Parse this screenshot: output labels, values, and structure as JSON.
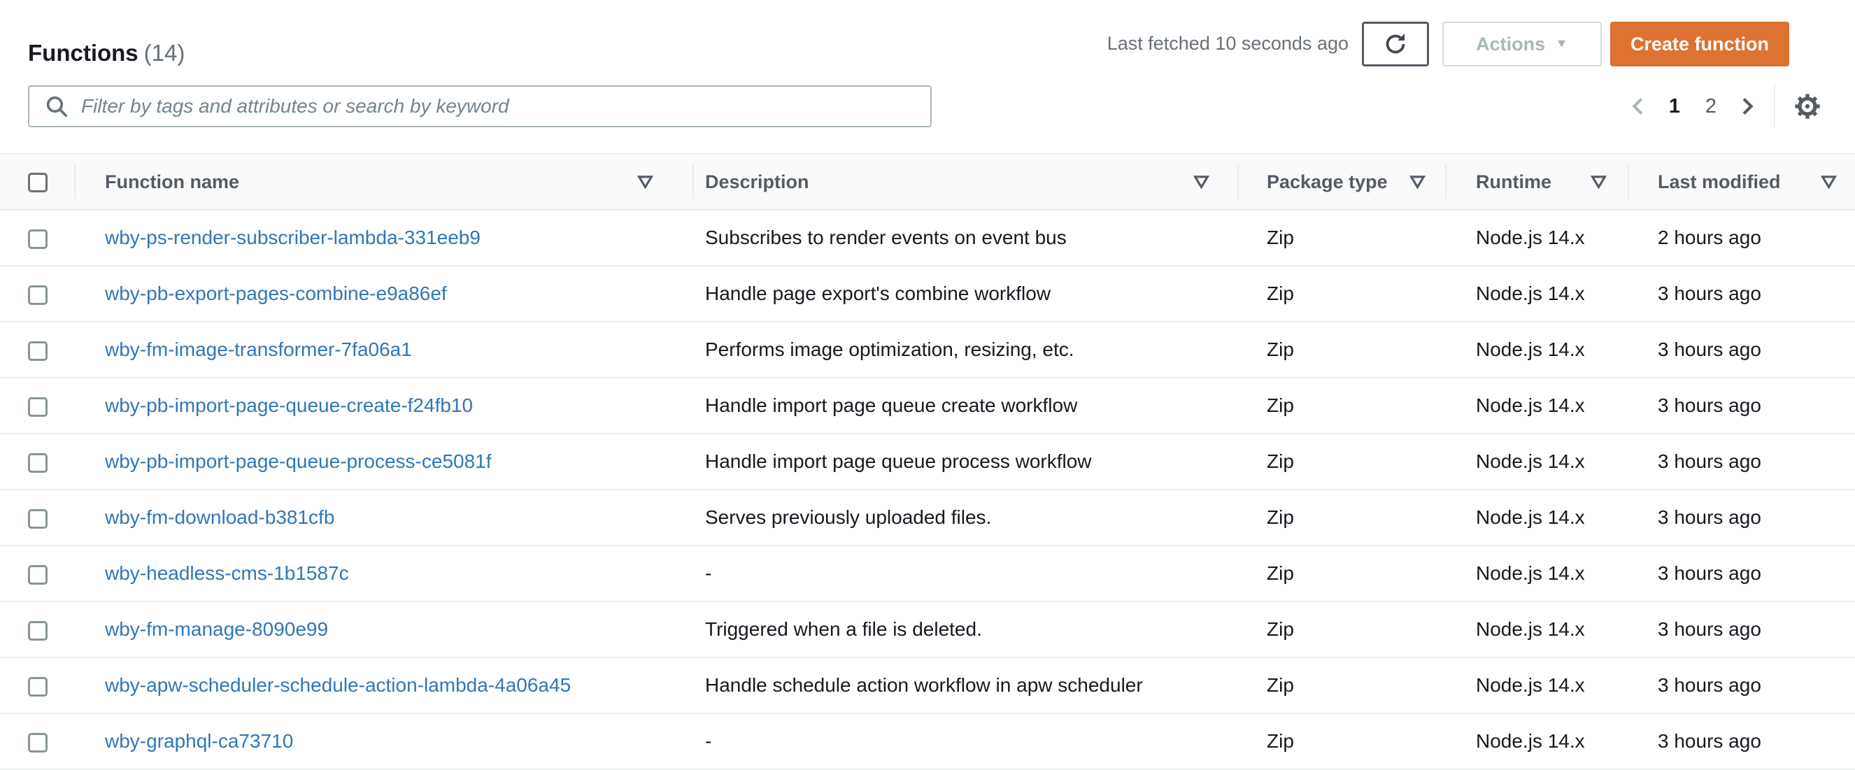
{
  "page": {
    "title": "Functions",
    "count": "(14)",
    "last_fetched": "Last fetched 10 seconds ago",
    "actions_label": "Actions",
    "create_label": "Create function"
  },
  "search": {
    "placeholder": "Filter by tags and attributes or search by keyword"
  },
  "pagination": {
    "pages": [
      {
        "label": "1",
        "current": true
      },
      {
        "label": "2",
        "current": false
      }
    ]
  },
  "icons": {
    "search": "magnifier",
    "refresh": "circular-arrow",
    "actions_caret": "▼",
    "sort": "outlined-triangle-down",
    "prev": "chevron-left",
    "next": "chevron-right",
    "settings": "gear"
  },
  "table": {
    "columns": [
      {
        "label": "Function name"
      },
      {
        "label": "Description"
      },
      {
        "label": "Package type"
      },
      {
        "label": "Runtime"
      },
      {
        "label": "Last modified"
      }
    ],
    "rows": [
      {
        "name": "wby-ps-render-subscriber-lambda-331eeb9",
        "description": "Subscribes to render events on event bus",
        "package_type": "Zip",
        "runtime": "Node.js 14.x",
        "last_modified": "2 hours ago"
      },
      {
        "name": "wby-pb-export-pages-combine-e9a86ef",
        "description": "Handle page export's combine workflow",
        "package_type": "Zip",
        "runtime": "Node.js 14.x",
        "last_modified": "3 hours ago"
      },
      {
        "name": "wby-fm-image-transformer-7fa06a1",
        "description": "Performs image optimization, resizing, etc.",
        "package_type": "Zip",
        "runtime": "Node.js 14.x",
        "last_modified": "3 hours ago"
      },
      {
        "name": "wby-pb-import-page-queue-create-f24fb10",
        "description": "Handle import page queue create workflow",
        "package_type": "Zip",
        "runtime": "Node.js 14.x",
        "last_modified": "3 hours ago"
      },
      {
        "name": "wby-pb-import-page-queue-process-ce5081f",
        "description": "Handle import page queue process workflow",
        "package_type": "Zip",
        "runtime": "Node.js 14.x",
        "last_modified": "3 hours ago"
      },
      {
        "name": "wby-fm-download-b381cfb",
        "description": "Serves previously uploaded files.",
        "package_type": "Zip",
        "runtime": "Node.js 14.x",
        "last_modified": "3 hours ago"
      },
      {
        "name": "wby-headless-cms-1b1587c",
        "description": "-",
        "package_type": "Zip",
        "runtime": "Node.js 14.x",
        "last_modified": "3 hours ago"
      },
      {
        "name": "wby-fm-manage-8090e99",
        "description": "Triggered when a file is deleted.",
        "package_type": "Zip",
        "runtime": "Node.js 14.x",
        "last_modified": "3 hours ago"
      },
      {
        "name": "wby-apw-scheduler-schedule-action-lambda-4a06a45",
        "description": "Handle schedule action workflow in apw scheduler",
        "package_type": "Zip",
        "runtime": "Node.js 14.x",
        "last_modified": "3 hours ago"
      },
      {
        "name": "wby-graphql-ca73710",
        "description": "-",
        "package_type": "Zip",
        "runtime": "Node.js 14.x",
        "last_modified": "3 hours ago"
      }
    ]
  },
  "colors": {
    "accent_orange": "#dd7233",
    "link_blue": "#3177b5",
    "header_text": "#545b64",
    "body_text": "#16191f",
    "muted_text": "#687078",
    "disabled_text": "#aab7b8",
    "border": "#eaeded",
    "header_bg": "#fafafa"
  }
}
